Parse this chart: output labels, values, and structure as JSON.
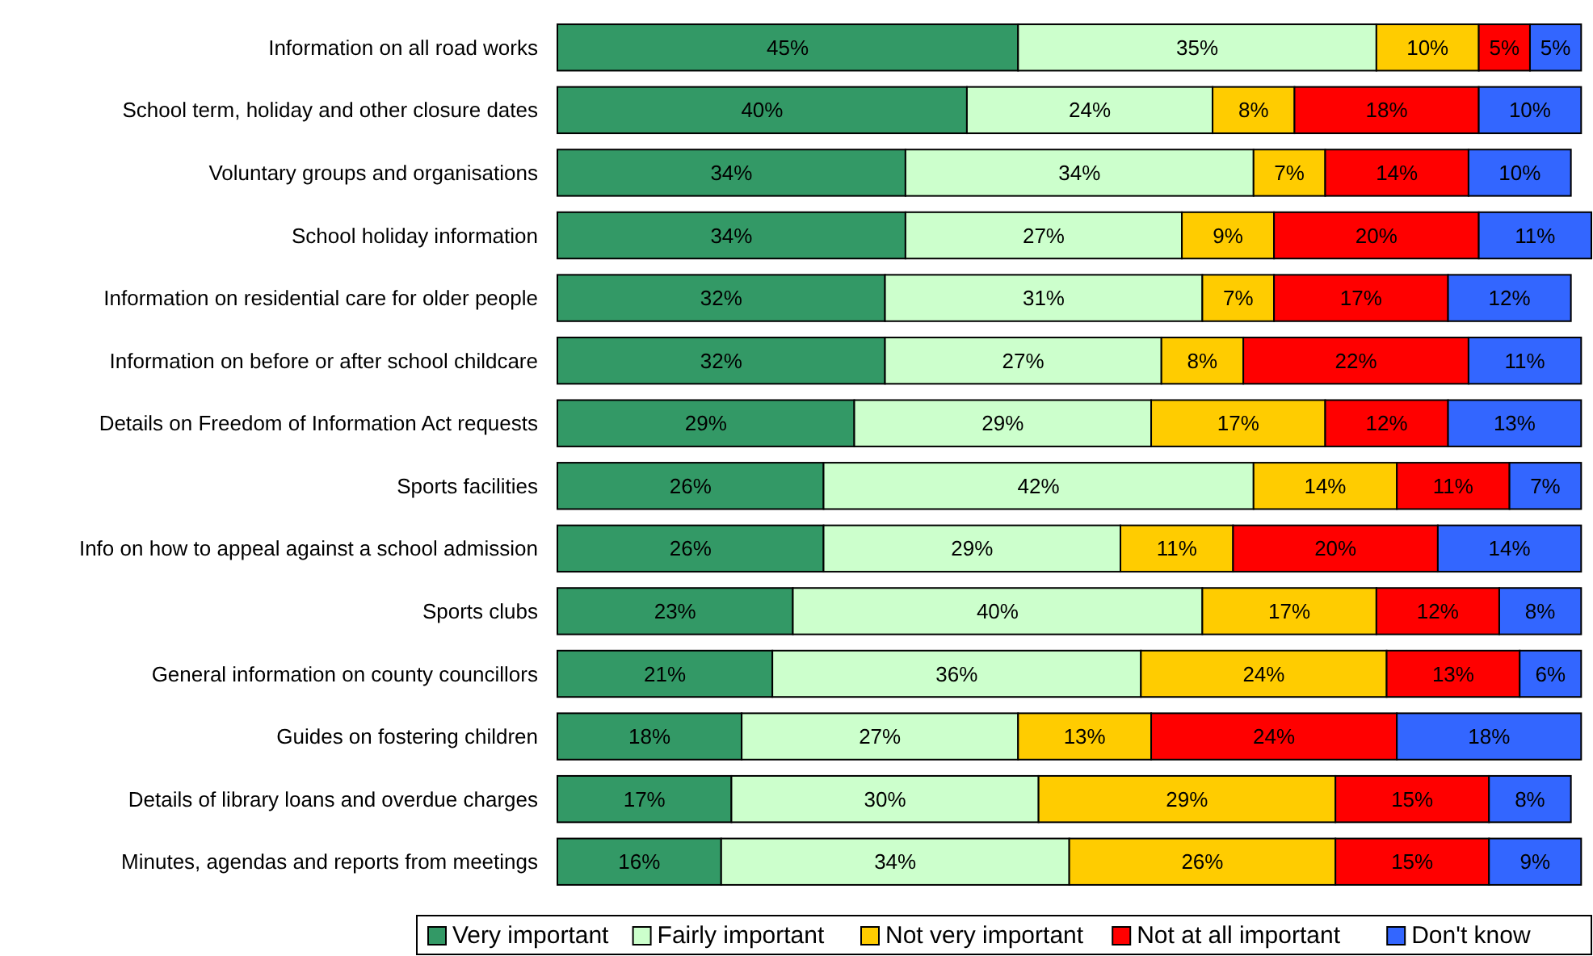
{
  "chart_data": {
    "type": "bar",
    "orientation": "horizontal",
    "stacked": true,
    "legend": "bottom",
    "xlim": [
      0,
      101
    ],
    "tick_labels": "y",
    "categories": [
      "Information on all road works",
      "School term, holiday and other closure dates",
      "Voluntary groups and organisations",
      "School holiday information",
      "Information on residential care for older people",
      "Information on before or after school childcare",
      "Details on Freedom of Information Act requests",
      "Sports facilities",
      "Info on how to appeal against a school admission",
      "Sports clubs",
      "General information on county councillors",
      "Guides on fostering children",
      "Details of library loans and overdue charges",
      "Minutes, agendas and reports from meetings"
    ],
    "series": [
      {
        "name": "Very important",
        "color": "#339966",
        "values": [
          45,
          40,
          34,
          34,
          32,
          32,
          29,
          26,
          26,
          23,
          21,
          18,
          17,
          16
        ],
        "value_labels": [
          "45%",
          "40%",
          "34%",
          "34%",
          "32%",
          "32%",
          "29%",
          "26%",
          "26%",
          "23%",
          "21%",
          "18%",
          "17%",
          "16%"
        ]
      },
      {
        "name": "Fairly important",
        "color": "#ccffcc",
        "values": [
          35,
          24,
          34,
          27,
          31,
          27,
          29,
          42,
          29,
          40,
          36,
          27,
          30,
          34
        ],
        "value_labels": [
          "35%",
          "24%",
          "34%",
          "27%",
          "31%",
          "27%",
          "29%",
          "42%",
          "29%",
          "40%",
          "36%",
          "27%",
          "30%",
          "34%"
        ]
      },
      {
        "name": "Not very important",
        "color": "#ffcc00",
        "values": [
          10,
          8,
          7,
          9,
          7,
          8,
          17,
          14,
          11,
          17,
          24,
          13,
          29,
          26
        ],
        "value_labels": [
          "10%",
          "8%",
          "7%",
          "9%",
          "7%",
          "8%",
          "17%",
          "14%",
          "11%",
          "17%",
          "24%",
          "13%",
          "29%",
          "26%"
        ]
      },
      {
        "name": "Not at all important",
        "color": "#ff0000",
        "values": [
          5,
          18,
          14,
          20,
          17,
          22,
          12,
          11,
          20,
          12,
          13,
          24,
          15,
          15
        ],
        "value_labels": [
          "5%",
          "18%",
          "14%",
          "20%",
          "17%",
          "22%",
          "12%",
          "11%",
          "20%",
          "12%",
          "13%",
          "24%",
          "15%",
          "15%"
        ]
      },
      {
        "name": "Don't know",
        "color": "#3366ff",
        "values": [
          5,
          10,
          10,
          11,
          12,
          11,
          13,
          7,
          14,
          8,
          6,
          18,
          8,
          9
        ],
        "value_labels": [
          "5%",
          "10%",
          "10%",
          "11%",
          "12%",
          "11%",
          "13%",
          "7%",
          "14%",
          "8%",
          "6%",
          "18%",
          "8%",
          "9%"
        ]
      }
    ]
  }
}
